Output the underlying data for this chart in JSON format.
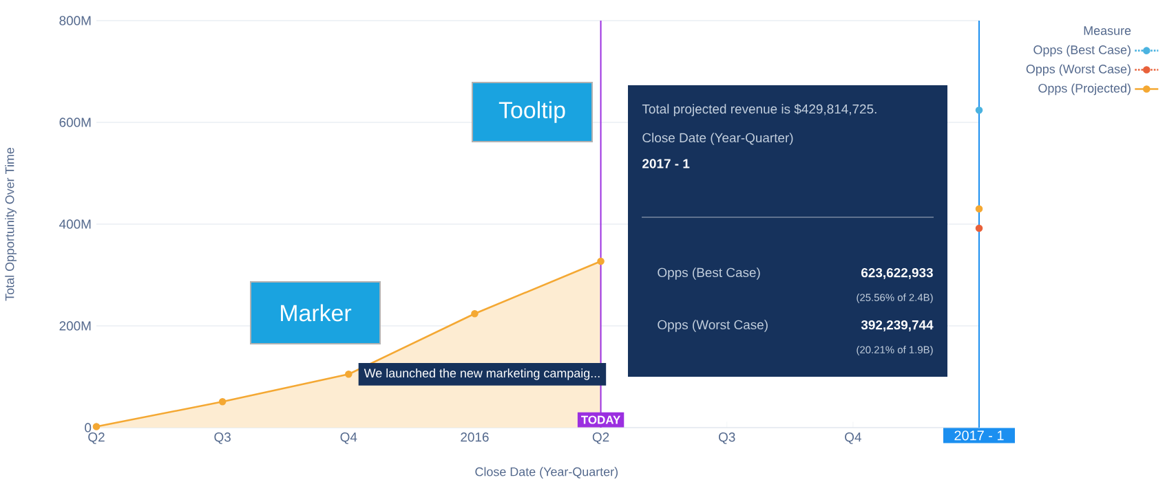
{
  "chart_data": {
    "type": "line",
    "xlabel": "Close Date (Year-Quarter)",
    "ylabel": "Total Opportunity Over Time",
    "legend_title": "Measure",
    "x": [
      "2015-04",
      "2015-07",
      "2015-10",
      "2016-01",
      "2016-04",
      "2016-07",
      "2016-10",
      "2017-01"
    ],
    "series": [
      {
        "name": "Opps (Best Case)",
        "color": "#4bb3e0",
        "line_style": "dotted",
        "values": [
          null,
          null,
          null,
          null,
          null,
          null,
          null,
          624
        ]
      },
      {
        "name": "Opps (Worst Case)",
        "color": "#e8613a",
        "line_style": "dotted",
        "values": [
          null,
          null,
          null,
          null,
          null,
          null,
          null,
          392
        ]
      },
      {
        "name": "Opps (Projected)",
        "color": "#f4a833",
        "type": "area",
        "line_style": "solid",
        "values": [
          2,
          51,
          105,
          224,
          327,
          null,
          null,
          null
        ]
      },
      {
        "color": "#f4a833",
        "type": "line",
        "line_style": "dotted",
        "values": [
          null,
          null,
          null,
          null,
          null,
          null,
          null,
          430
        ]
      }
    ],
    "xlim": [
      "2015-04",
      "2017-01"
    ],
    "xticks": [
      {
        "value": "2015-04",
        "label": "Q2"
      },
      {
        "value": "2015-07",
        "label": "Q3"
      },
      {
        "value": "2015-10",
        "label": "Q4"
      },
      {
        "value": "2016-01",
        "label": "2016"
      },
      {
        "value": "2016-04",
        "label": "Q2"
      },
      {
        "value": "2016-07",
        "label": "Q3"
      },
      {
        "value": "2016-10",
        "label": "Q4"
      },
      {
        "value": "2017-01",
        "label": null
      }
    ],
    "ylim": [
      0,
      800
    ],
    "yticks": [
      0,
      {
        "value": 200,
        "label": "200M"
      },
      {
        "value": 400,
        "label": "400M"
      },
      {
        "value": 600,
        "label": "600M"
      },
      {
        "value": 800,
        "label": "800M"
      }
    ],
    "ref_lines": [
      {
        "axis": "x",
        "value": "2016-04",
        "label": "TODAY",
        "color": "#9b2fe0"
      },
      {
        "axis": "x",
        "value": "2017-01",
        "label": "2017 - 1",
        "color": "#1b8ff0"
      }
    ],
    "annotations": [
      "Tooltip",
      "Marker",
      {
        "text": "We launched the new marketing campaig...",
        "x": "2015-10",
        "y": 105
      },
      "Total projected revenue is $429,814,725.",
      "Close Date (Year-Quarter)",
      "2017 - 1",
      "Opps (Best Case)",
      "623,622,933",
      "(25.56% of 2.4B)",
      "Opps (Worst Case)",
      "392,239,744",
      "(20.21% of 1.9B)"
    ],
    "grid": "y",
    "legend": "top right",
    "marker": "circle"
  }
}
